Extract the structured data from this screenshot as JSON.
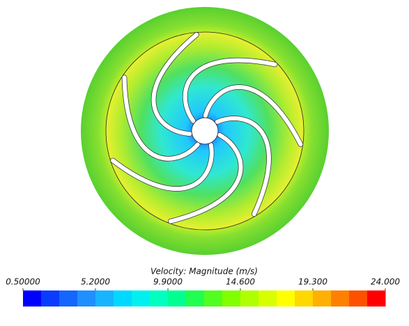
{
  "chart_data": {
    "type": "contour",
    "title": "Velocity: Magnitude (m/s)",
    "clim": [
      0.5,
      24
    ],
    "cticks": [
      {
        "value": 0.5,
        "label": "0.50000"
      },
      {
        "value": 5.2,
        "label": "5.2000"
      },
      {
        "value": 9.9,
        "label": "9.9000"
      },
      {
        "value": 14.6,
        "label": "14.600"
      },
      {
        "value": 19.3,
        "label": "19.300"
      },
      {
        "value": 24,
        "label": "24.000"
      }
    ],
    "colormap": [
      "#0000ff",
      "#0a3cff",
      "#1466ff",
      "#1e90ff",
      "#18b4ff",
      "#00d8ff",
      "#00f0f0",
      "#00ffc0",
      "#00ff90",
      "#20ff50",
      "#50ff20",
      "#80ff00",
      "#b0ff00",
      "#d8ff00",
      "#ffff00",
      "#ffd800",
      "#ffb000",
      "#ff8000",
      "#ff5000",
      "#ff0000"
    ]
  }
}
